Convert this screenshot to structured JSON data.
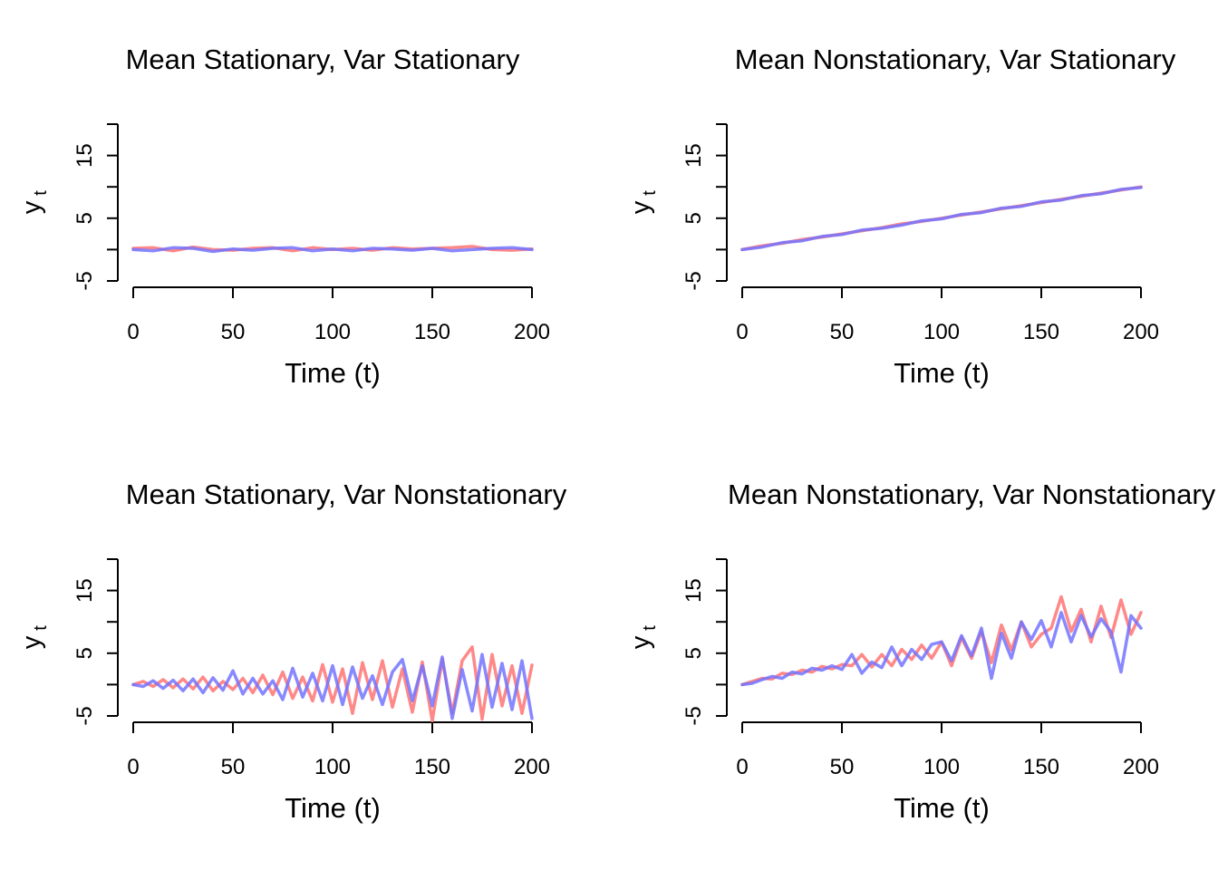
{
  "series_colors": [
    "#ff7373",
    "#7373ff"
  ],
  "overlap_color": "#8033cc",
  "chart_data": [
    {
      "type": "line",
      "title": "Mean Stationary, Var Stationary",
      "xlabel": "Time (t)",
      "ylabel": "y",
      "ylabel_subscript": "t",
      "xlim": [
        0,
        200
      ],
      "ylim": [
        -5,
        20
      ],
      "xticks": [
        0,
        50,
        100,
        150,
        200
      ],
      "yticks": [
        -5,
        0,
        5,
        10,
        15,
        20
      ],
      "ytick_labels": [
        "-5",
        "",
        "5",
        "",
        "15",
        ""
      ],
      "series": [
        {
          "color": "#ff7373",
          "x": [
            0,
            10,
            20,
            30,
            40,
            50,
            60,
            70,
            80,
            90,
            100,
            110,
            120,
            130,
            140,
            150,
            160,
            170,
            180,
            190,
            200
          ],
          "y": [
            0.2,
            0.3,
            -0.2,
            0.4,
            0,
            -0.1,
            0.2,
            0.3,
            -0.2,
            0.3,
            0,
            0.2,
            -0.1,
            0.3,
            0.1,
            0.2,
            0.3,
            0.5,
            0,
            -0.1,
            0.1
          ]
        },
        {
          "color": "#7373ff",
          "x": [
            0,
            10,
            20,
            30,
            40,
            50,
            60,
            70,
            80,
            90,
            100,
            110,
            120,
            130,
            140,
            150,
            160,
            170,
            180,
            190,
            200
          ],
          "y": [
            0,
            -0.2,
            0.3,
            0.2,
            -0.3,
            0.1,
            -0.1,
            0.2,
            0.3,
            -0.2,
            0.1,
            -0.2,
            0.2,
            0.1,
            -0.1,
            0.2,
            -0.2,
            0,
            0.2,
            0.3,
            0
          ]
        }
      ]
    },
    {
      "type": "line",
      "title": "Mean Nonstationary, Var Stationary",
      "xlabel": "Time (t)",
      "ylabel": "y",
      "ylabel_subscript": "t",
      "xlim": [
        0,
        200
      ],
      "ylim": [
        -5,
        20
      ],
      "xticks": [
        0,
        50,
        100,
        150,
        200
      ],
      "yticks": [
        -5,
        0,
        5,
        10,
        15,
        20
      ],
      "ytick_labels": [
        "-5",
        "",
        "5",
        "",
        "15",
        ""
      ],
      "series": [
        {
          "color": "#ff7373",
          "x": [
            0,
            10,
            20,
            30,
            40,
            50,
            60,
            70,
            80,
            90,
            100,
            110,
            120,
            130,
            140,
            150,
            160,
            170,
            180,
            190,
            200
          ],
          "y": [
            0,
            0.6,
            1.0,
            1.6,
            2.0,
            2.5,
            3.0,
            3.5,
            4.1,
            4.5,
            5.0,
            5.5,
            6.0,
            6.5,
            7.0,
            7.5,
            8.0,
            8.5,
            9.0,
            9.5,
            10.0
          ]
        },
        {
          "color": "#7373ff",
          "x": [
            0,
            10,
            20,
            30,
            40,
            50,
            60,
            70,
            80,
            90,
            100,
            110,
            120,
            130,
            140,
            150,
            160,
            170,
            180,
            190,
            200
          ],
          "y": [
            0,
            0.4,
            1.1,
            1.4,
            2.1,
            2.4,
            3.1,
            3.4,
            3.9,
            4.6,
            4.9,
            5.6,
            5.9,
            6.6,
            6.9,
            7.6,
            7.9,
            8.6,
            8.9,
            9.6,
            9.9
          ]
        }
      ]
    },
    {
      "type": "line",
      "title": "Mean Stationary, Var Nonstationary",
      "xlabel": "Time (t)",
      "ylabel": "y",
      "ylabel_subscript": "t",
      "xlim": [
        0,
        200
      ],
      "ylim": [
        -5,
        20
      ],
      "xticks": [
        0,
        50,
        100,
        150,
        200
      ],
      "yticks": [
        -5,
        0,
        5,
        10,
        15,
        20
      ],
      "ytick_labels": [
        "-5",
        "",
        "5",
        "",
        "15",
        ""
      ],
      "series": [
        {
          "color": "#ff7373",
          "x": [
            0,
            5,
            10,
            15,
            20,
            25,
            30,
            35,
            40,
            45,
            50,
            55,
            60,
            65,
            70,
            75,
            80,
            85,
            90,
            95,
            100,
            105,
            110,
            115,
            120,
            125,
            130,
            135,
            140,
            145,
            150,
            155,
            160,
            165,
            170,
            175,
            180,
            185,
            190,
            195,
            200
          ],
          "y": [
            0,
            0.5,
            -0.3,
            0.8,
            -0.5,
            0.9,
            -0.7,
            1.2,
            -1.0,
            0.5,
            -0.8,
            1.0,
            -1.3,
            1.5,
            -1.6,
            2.0,
            -2.2,
            1.2,
            -2.6,
            3.2,
            -2.8,
            2.5,
            -4.6,
            3.5,
            -2.4,
            3.8,
            -3.6,
            2.5,
            -4.4,
            3.6,
            -5.8,
            4.0,
            -4.6,
            3.8,
            6.0,
            -5.5,
            4.8,
            -3.4,
            3.0,
            -4.6,
            3.1
          ]
        },
        {
          "color": "#7373ff",
          "x": [
            0,
            5,
            10,
            15,
            20,
            25,
            30,
            35,
            40,
            45,
            50,
            55,
            60,
            65,
            70,
            75,
            80,
            85,
            90,
            95,
            100,
            105,
            110,
            115,
            120,
            125,
            130,
            135,
            140,
            145,
            150,
            155,
            160,
            165,
            170,
            175,
            180,
            185,
            190,
            195,
            200
          ],
          "y": [
            0,
            -0.3,
            0.6,
            -0.6,
            0.7,
            -1.0,
            0.9,
            -1.3,
            1.1,
            -0.9,
            2.2,
            -1.5,
            1.0,
            -1.5,
            0.6,
            -2.4,
            2.6,
            -2.0,
            1.8,
            -2.6,
            3.0,
            -3.2,
            2.8,
            -2.2,
            1.4,
            -3.2,
            2.0,
            4.0,
            -2.6,
            3.0,
            -3.4,
            4.4,
            -5.4,
            2.4,
            -4.2,
            4.8,
            -3.6,
            3.4,
            -4.0,
            3.8,
            -5.4
          ]
        }
      ]
    },
    {
      "type": "line",
      "title": "Mean Nonstationary, Var Nonstationary",
      "xlabel": "Time (t)",
      "ylabel": "y",
      "ylabel_subscript": "t",
      "xlim": [
        0,
        200
      ],
      "ylim": [
        -5,
        20
      ],
      "xticks": [
        0,
        50,
        100,
        150,
        200
      ],
      "yticks": [
        -5,
        0,
        5,
        10,
        15,
        20
      ],
      "ytick_labels": [
        "-5",
        "",
        "5",
        "",
        "15",
        ""
      ],
      "series": [
        {
          "color": "#ff7373",
          "x": [
            0,
            5,
            10,
            15,
            20,
            25,
            30,
            35,
            40,
            45,
            50,
            55,
            60,
            65,
            70,
            75,
            80,
            85,
            90,
            95,
            100,
            105,
            110,
            115,
            120,
            125,
            130,
            135,
            140,
            145,
            150,
            155,
            160,
            165,
            170,
            175,
            180,
            185,
            190,
            195,
            200
          ],
          "y": [
            0,
            0.5,
            1.0,
            0.9,
            1.8,
            1.6,
            2.3,
            2.0,
            2.9,
            2.5,
            3.2,
            3.0,
            4.8,
            2.8,
            4.8,
            3.0,
            5.6,
            4.0,
            6.3,
            4.2,
            6.8,
            3.0,
            7.5,
            4.2,
            8.5,
            3.5,
            9.5,
            5.5,
            10.0,
            6.0,
            8.0,
            9.0,
            14.0,
            8.5,
            12.0,
            6.8,
            12.5,
            7.5,
            13.5,
            8.0,
            11.5
          ]
        },
        {
          "color": "#7373ff",
          "x": [
            0,
            5,
            10,
            15,
            20,
            25,
            30,
            35,
            40,
            45,
            50,
            55,
            60,
            65,
            70,
            75,
            80,
            85,
            90,
            95,
            100,
            105,
            110,
            115,
            120,
            125,
            130,
            135,
            140,
            145,
            150,
            155,
            160,
            165,
            170,
            175,
            180,
            185,
            190,
            195,
            200
          ],
          "y": [
            0,
            0.2,
            0.8,
            1.3,
            1.0,
            2.0,
            1.7,
            2.6,
            2.3,
            3.0,
            2.4,
            4.8,
            1.8,
            3.6,
            2.7,
            6.0,
            3.0,
            5.6,
            4.0,
            6.4,
            6.8,
            3.8,
            7.8,
            4.6,
            9.0,
            1.0,
            8.2,
            4.2,
            10.0,
            7.2,
            10.2,
            6.0,
            11.5,
            6.8,
            11.0,
            7.6,
            10.5,
            8.4,
            2.0,
            11.0,
            9.0
          ]
        }
      ]
    }
  ]
}
